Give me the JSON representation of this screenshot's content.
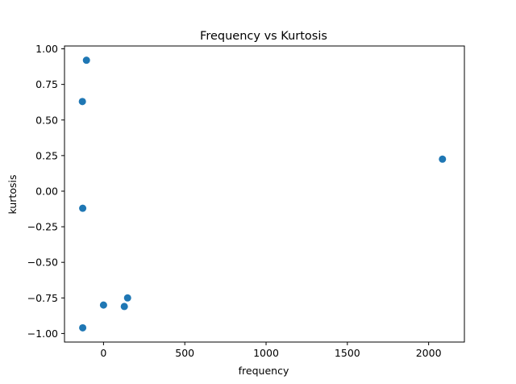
{
  "chart_data": {
    "type": "scatter",
    "title": "Frequency vs Kurtosis",
    "xlabel": "frequency",
    "ylabel": "kurtosis",
    "xlim": [
      -240,
      2220
    ],
    "ylim": [
      -1.06,
      1.02
    ],
    "xticks": [
      0,
      500,
      1000,
      1500,
      2000
    ],
    "xtick_labels": [
      "0",
      "500",
      "1000",
      "1500",
      "2000"
    ],
    "yticks": [
      -1.0,
      -0.75,
      -0.5,
      -0.25,
      0.0,
      0.25,
      0.5,
      0.75,
      1.0
    ],
    "ytick_labels": [
      "−1.00",
      "−0.75",
      "−0.50",
      "−0.25",
      "0.00",
      "0.25",
      "0.50",
      "0.75",
      "1.00"
    ],
    "grid": false,
    "marker_color": "#1f77b4",
    "series": [
      {
        "x": [
          -105,
          -130,
          -128,
          -128,
          0,
          128,
          148,
          2085
        ],
        "y": [
          0.92,
          0.63,
          -0.12,
          -0.96,
          -0.8,
          -0.81,
          -0.75,
          0.225
        ]
      }
    ]
  }
}
